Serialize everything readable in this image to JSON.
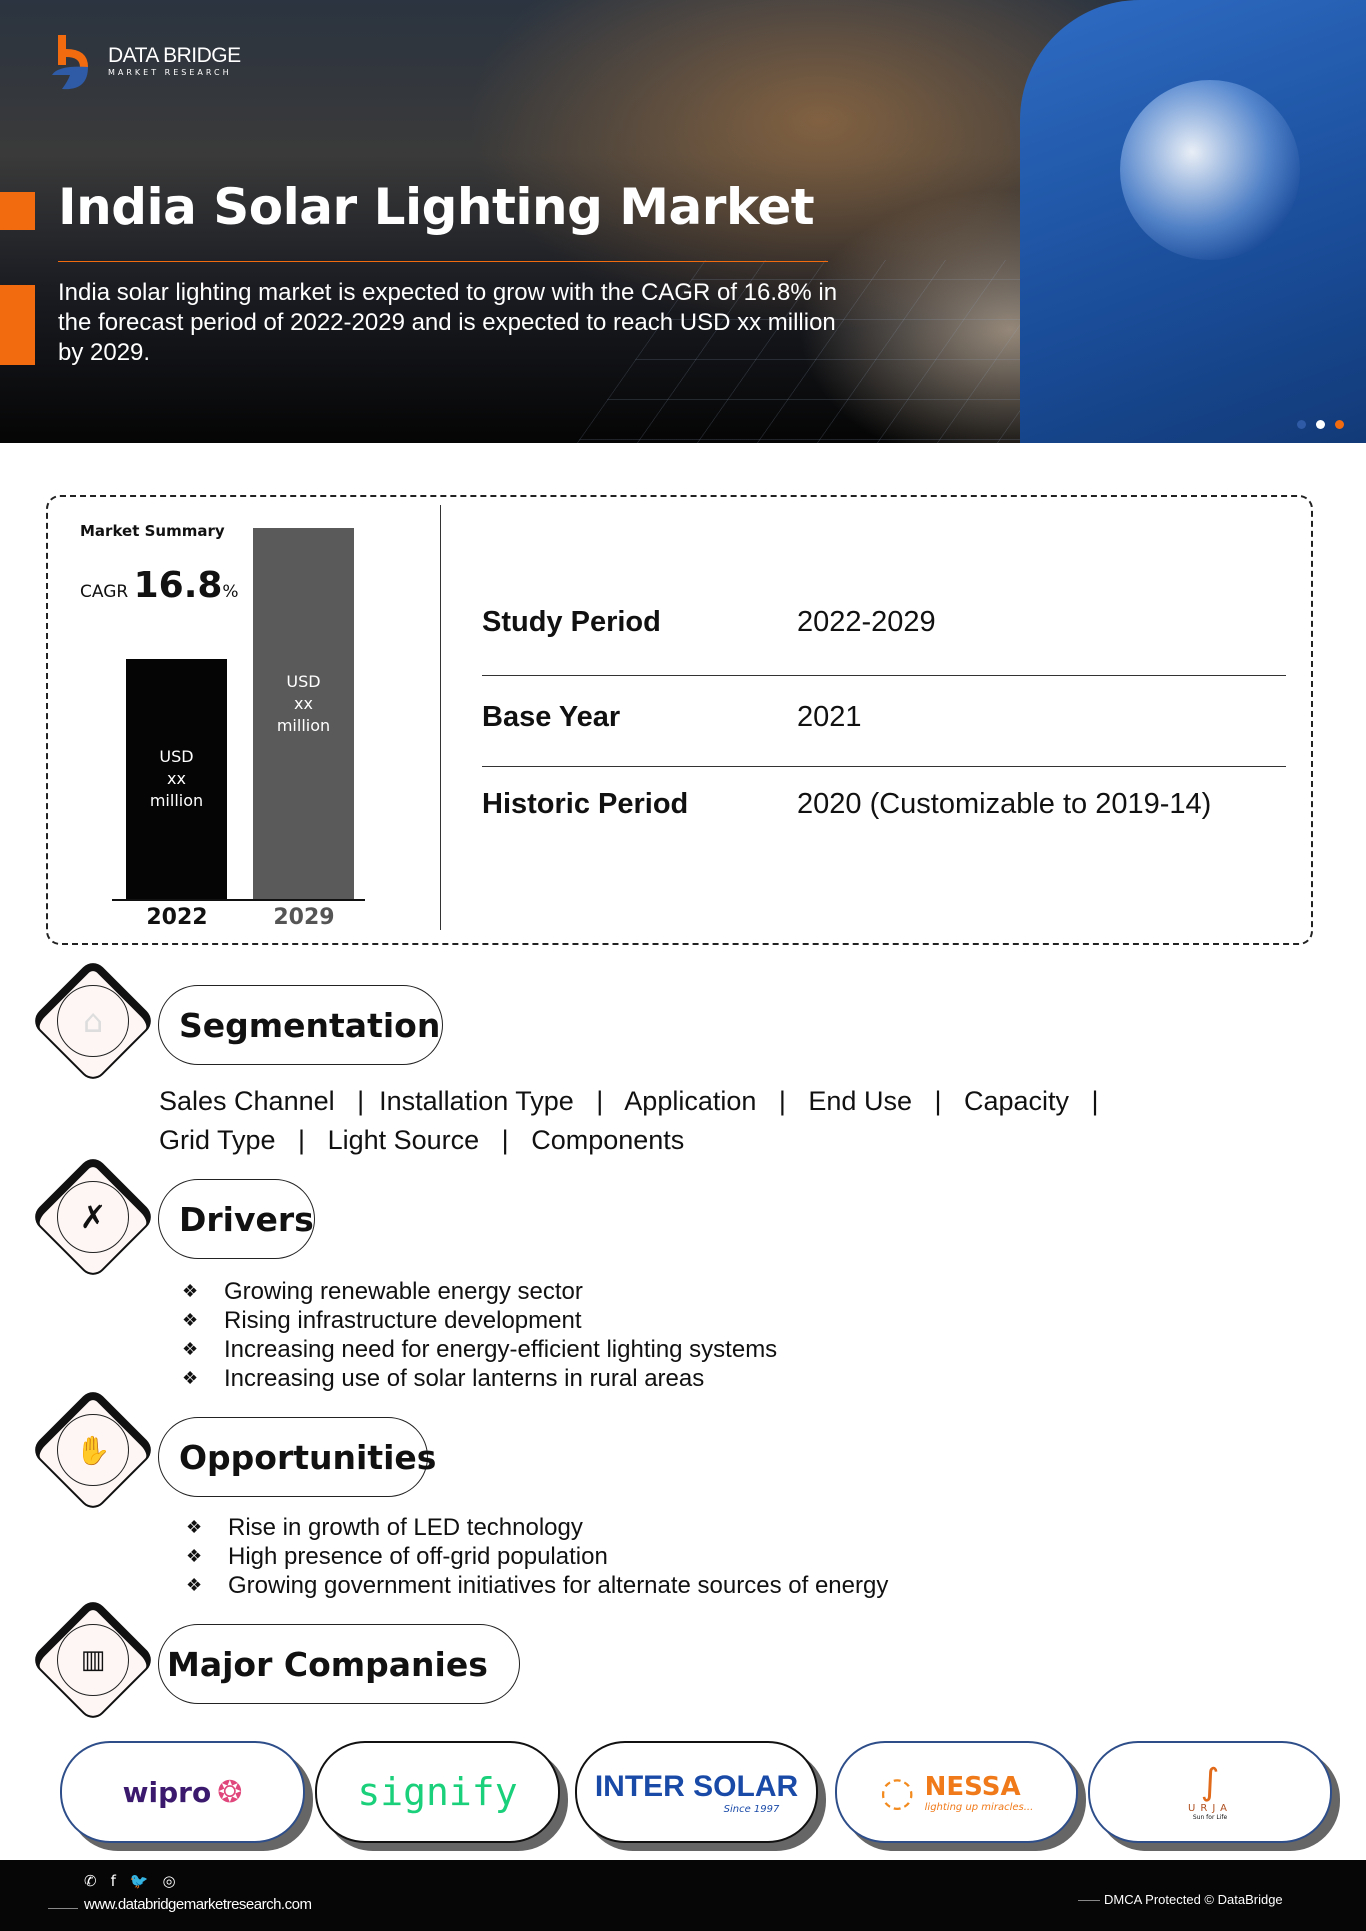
{
  "brand": {
    "name": "DATA BRIDGE",
    "tagline": "MARKET RESEARCH"
  },
  "hero": {
    "title": "India Solar Lighting Market",
    "intro": "India solar lighting market is expected to grow with the CAGR of 16.8% in the forecast period of 2022-2029 and is expected to reach USD xx million by 2029."
  },
  "colors": {
    "accent": "#f26b0f",
    "bar_2022": "#050505",
    "bar_2029": "#5a5a5a"
  },
  "summary": {
    "title": "Market Summary",
    "cagr_label": "CAGR",
    "cagr_value": "16.8",
    "cagr_unit": "%",
    "bars": [
      {
        "year": "2022",
        "label_1": "USD",
        "label_2": "xx",
        "label_3": "million"
      },
      {
        "year": "2029",
        "label_1": "USD",
        "label_2": "xx",
        "label_3": "million"
      }
    ],
    "rows": [
      {
        "label": "Study Period",
        "value": "2022-2029"
      },
      {
        "label": "Base Year",
        "value": "2021"
      },
      {
        "label": "Historic Period",
        "value": "2020 (Customizable to 2019-14)"
      }
    ]
  },
  "segmentation": {
    "title": "Segmentation",
    "line1": "Sales Channel   |  Installation Type   |   Application   |   End Use   |   Capacity   |",
    "line2": "Grid Type   |   Light Source   |   Components"
  },
  "drivers": {
    "title": "Drivers",
    "items": [
      "Growing renewable energy sector",
      "Rising infrastructure development",
      "Increasing need for energy-efficient lighting systems",
      "Increasing use of solar lanterns in rural areas"
    ]
  },
  "opportunities": {
    "title": "Opportunities",
    "items": [
      "Rise in growth of LED technology",
      "High presence of off-grid population",
      "Growing government initiatives for alternate sources of energy"
    ]
  },
  "companies": {
    "title": "Major Companies",
    "logos": [
      "wipro",
      "signify",
      "INTER SOLAR",
      "NESSA",
      "URJA"
    ],
    "nessa_tagline": "lighting up miracles...",
    "intersolar_since": "Since 1997",
    "urja_tagline": "Sun for Life"
  },
  "footer": {
    "url": "www.databridgemarketresearch.com",
    "dmca": "DMCA Protected © DataBridge",
    "social": [
      "whatsapp-icon",
      "facebook-icon",
      "twitter-icon",
      "instagram-icon"
    ]
  }
}
